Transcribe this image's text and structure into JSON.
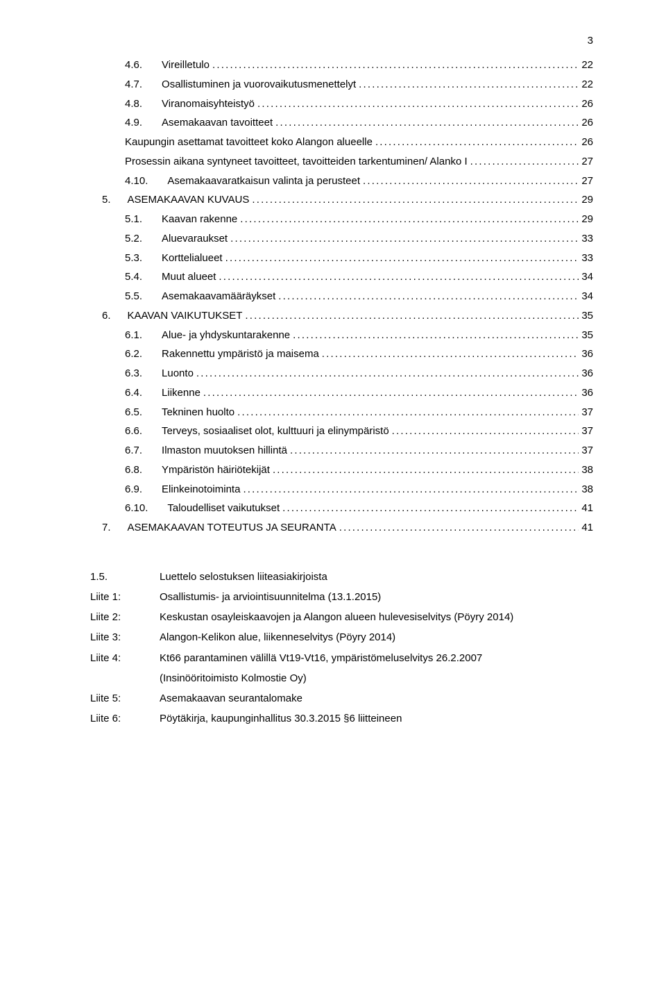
{
  "page_number": "3",
  "toc": [
    {
      "indent": 2,
      "num": "4.6.",
      "label": "Vireilletulo",
      "page": "22"
    },
    {
      "indent": 2,
      "num": "4.7.",
      "label": "Osallistuminen ja vuorovaikutusmenettelyt",
      "page": "22"
    },
    {
      "indent": 2,
      "num": "4.8.",
      "label": "Viranomaisyhteistyö",
      "page": "26"
    },
    {
      "indent": 2,
      "num": "4.9.",
      "label": "Asemakaavan tavoitteet",
      "page": "26"
    },
    {
      "indent": 2,
      "num": "",
      "label": "Kaupungin asettamat tavoitteet koko Alangon alueelle",
      "page": "26"
    },
    {
      "indent": 2,
      "num": "",
      "label": "Prosessin aikana syntyneet tavoitteet, tavoitteiden tarkentuminen/ Alanko I",
      "page": "27"
    },
    {
      "indent": 2,
      "num": "4.10.",
      "label": "Asemakaavaratkaisun valinta ja perusteet",
      "page": "27"
    },
    {
      "indent": 1,
      "num": "5.",
      "label": "ASEMAKAAVAN KUVAUS",
      "page": "29"
    },
    {
      "indent": 2,
      "num": "5.1.",
      "label": "Kaavan rakenne",
      "page": "29"
    },
    {
      "indent": 2,
      "num": "5.2.",
      "label": "Aluevaraukset",
      "page": "33"
    },
    {
      "indent": 2,
      "num": "5.3.",
      "label": "Korttelialueet",
      "page": "33"
    },
    {
      "indent": 2,
      "num": "5.4.",
      "label": "Muut alueet",
      "page": "34"
    },
    {
      "indent": 2,
      "num": "5.5.",
      "label": "Asemakaavamääräykset",
      "page": "34"
    },
    {
      "indent": 1,
      "num": "6.",
      "label": "KAAVAN VAIKUTUKSET",
      "page": "35"
    },
    {
      "indent": 2,
      "num": "6.1.",
      "label": "Alue- ja yhdyskuntarakenne",
      "page": "35"
    },
    {
      "indent": 2,
      "num": "6.2.",
      "label": "Rakennettu ympäristö ja maisema",
      "page": "36"
    },
    {
      "indent": 2,
      "num": "6.3.",
      "label": "Luonto",
      "page": "36"
    },
    {
      "indent": 2,
      "num": "6.4.",
      "label": "Liikenne",
      "page": "36"
    },
    {
      "indent": 2,
      "num": "6.5.",
      "label": "Tekninen huolto",
      "page": "37"
    },
    {
      "indent": 2,
      "num": "6.6.",
      "label": "Terveys, sosiaaliset olot, kulttuuri ja elinympäristö",
      "page": "37"
    },
    {
      "indent": 2,
      "num": "6.7.",
      "label": "Ilmaston muutoksen hillintä",
      "page": "37"
    },
    {
      "indent": 2,
      "num": "6.8.",
      "label": "Ympäristön häiriötekijät",
      "page": "38"
    },
    {
      "indent": 2,
      "num": "6.9.",
      "label": "Elinkeinotoiminta",
      "page": "38"
    },
    {
      "indent": 2,
      "num": "6.10.",
      "label": "Taloudelliset vaikutukset",
      "page": "41"
    },
    {
      "indent": 1,
      "num": "7.",
      "label": "ASEMAKAAVAN TOTEUTUS JA SEURANTA",
      "page": "41"
    }
  ],
  "attachments": {
    "heading_num": "1.5.",
    "heading_label": "Luettelo selostuksen liiteasiakirjoista",
    "rows": [
      {
        "label": "Liite 1:",
        "text": "Osallistumis- ja arviointisuunnitelma (13.1.2015)"
      },
      {
        "label": "Liite 2:",
        "text": "Keskustan osayleiskaavojen ja Alangon alueen hulevesiselvitys (Pöyry 2014)"
      },
      {
        "label": "Liite 3:",
        "text": "Alangon-Kelikon alue, liikenneselvitys (Pöyry 2014)"
      },
      {
        "label": "Liite 4:",
        "text": "Kt66 parantaminen välillä Vt19-Vt16, ympäristömeluselvitys 26.2.2007"
      },
      {
        "label": "",
        "text": "(Insinööritoimisto Kolmostie Oy)"
      },
      {
        "label": "Liite 5:",
        "text": "Asemakaavan seurantalomake"
      },
      {
        "label": "Liite 6:",
        "text": "Pöytäkirja, kaupunginhallitus 30.3.2015 §6 liitteineen"
      }
    ]
  }
}
